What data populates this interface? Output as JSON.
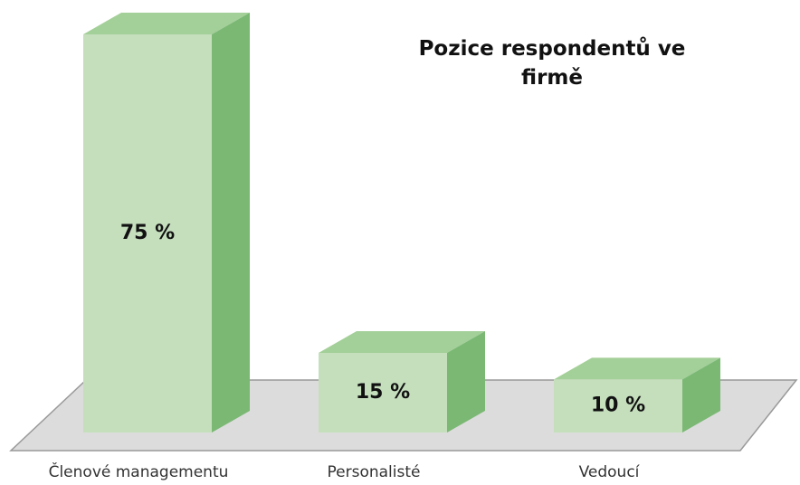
{
  "chart_data": {
    "type": "bar3d",
    "title": "Pozice respondentů ve firmě",
    "categories": [
      "Členové managementu",
      "Personalisté",
      "Vedoucí"
    ],
    "values": [
      75,
      15,
      10
    ],
    "value_labels": [
      "75 %",
      "15 %",
      "10 %"
    ],
    "color": "#c5dfbd"
  }
}
